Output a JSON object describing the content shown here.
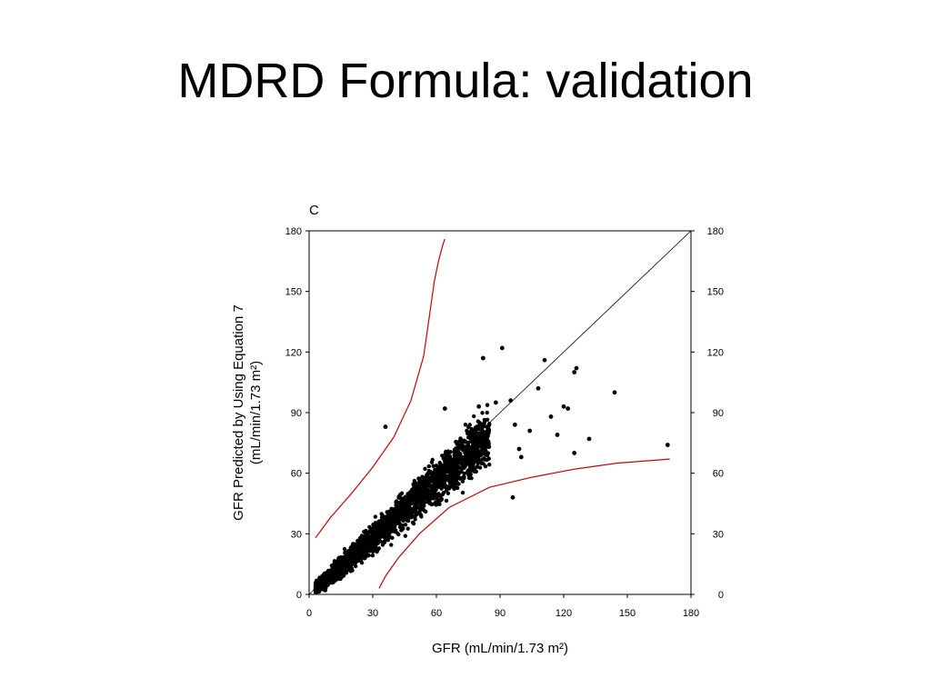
{
  "slide": {
    "title": "MDRD Formula: validation"
  },
  "chart_data": {
    "type": "scatter",
    "panel_label": "C",
    "xlabel": "GFR (mL/min/1.73 m²)",
    "ylabel_line1": "GFR Predicted by Using Equation 7",
    "ylabel_line2": "(mL/min/1.73 m²)",
    "xlim": [
      0,
      180
    ],
    "ylim": [
      0,
      180
    ],
    "x_ticks": [
      0,
      30,
      60,
      90,
      120,
      150,
      180
    ],
    "y_ticks": [
      0,
      30,
      60,
      90,
      120,
      150,
      180
    ],
    "right_y_ticks": [
      0,
      30,
      60,
      90,
      120,
      150,
      180
    ],
    "grid": false,
    "identity_line": true,
    "point_color": "#000000",
    "band_color": "#cc0000",
    "upper_band": {
      "x": [
        3,
        10,
        20,
        30,
        40,
        48,
        54,
        57,
        59,
        61,
        63,
        64
      ],
      "y": [
        28,
        38,
        50,
        63,
        78,
        96,
        118,
        140,
        155,
        165,
        173,
        176
      ]
    },
    "lower_band": {
      "x": [
        33,
        36,
        42,
        52,
        66,
        85,
        105,
        125,
        145,
        170
      ],
      "y": [
        3,
        9,
        18,
        30,
        43,
        53,
        58,
        62,
        65,
        67
      ]
    },
    "outliers": [
      {
        "x": 36,
        "y": 83
      },
      {
        "x": 82,
        "y": 117
      },
      {
        "x": 91,
        "y": 122
      },
      {
        "x": 111,
        "y": 116
      },
      {
        "x": 125,
        "y": 110
      },
      {
        "x": 126,
        "y": 112
      },
      {
        "x": 108,
        "y": 102
      },
      {
        "x": 144,
        "y": 100
      },
      {
        "x": 120,
        "y": 93
      },
      {
        "x": 122,
        "y": 92
      },
      {
        "x": 114,
        "y": 88
      },
      {
        "x": 117,
        "y": 79
      },
      {
        "x": 169,
        "y": 74
      },
      {
        "x": 132,
        "y": 77
      },
      {
        "x": 125,
        "y": 70
      },
      {
        "x": 96,
        "y": 48
      },
      {
        "x": 100,
        "y": 68
      },
      {
        "x": 104,
        "y": 81
      },
      {
        "x": 88,
        "y": 95
      },
      {
        "x": 95,
        "y": 96
      },
      {
        "x": 64,
        "y": 92
      },
      {
        "x": 80,
        "y": 93
      },
      {
        "x": 97,
        "y": 84
      },
      {
        "x": 99,
        "y": 72
      }
    ]
  }
}
